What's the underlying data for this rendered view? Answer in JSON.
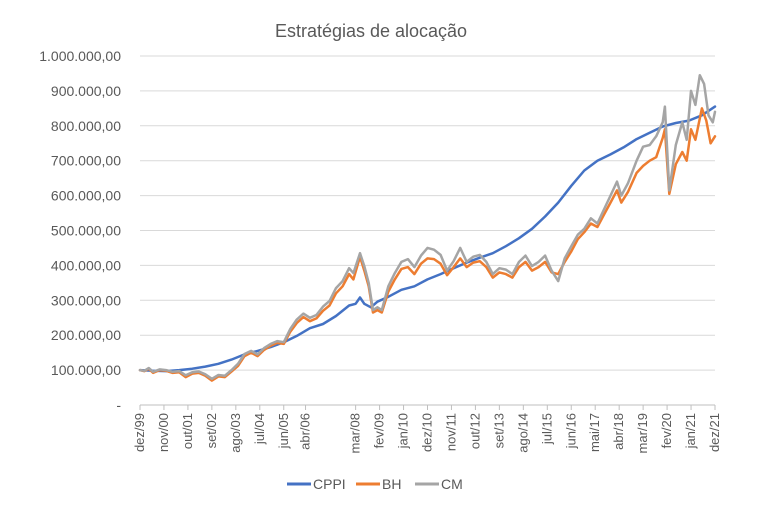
{
  "chart_data": {
    "type": "line",
    "title": "Estratégias de alocação",
    "xlabel": "",
    "ylabel": "",
    "ylim": [
      0,
      1000000
    ],
    "y_ticks": [
      0,
      100000,
      200000,
      300000,
      400000,
      500000,
      600000,
      700000,
      800000,
      900000,
      1000000
    ],
    "y_tick_labels": [
      "-",
      "100.000,00",
      "200.000,00",
      "300.000,00",
      "400.000,00",
      "500.000,00",
      "600.000,00",
      "700.000,00",
      "800.000,00",
      "900.000,00",
      "1.000.000,00"
    ],
    "x_tick_labels": [
      "dez/99",
      "nov/00",
      "out/01",
      "set/02",
      "ago/03",
      "jul/04",
      "jun/05",
      "abr/06",
      "mar/08",
      "fev/09",
      "jan/10",
      "dez/10",
      "nov/11",
      "out/12",
      "set/13",
      "ago/14",
      "jul/15",
      "jun/16",
      "mai/17",
      "abr/18",
      "mar/19",
      "fev/20",
      "jan/21",
      "dez/21"
    ],
    "x_tick_dates": [
      "1999-12",
      "2000-11",
      "2001-10",
      "2002-09",
      "2003-08",
      "2004-07",
      "2005-06",
      "2006-04",
      "2008-03",
      "2009-02",
      "2010-01",
      "2010-12",
      "2011-11",
      "2012-10",
      "2013-09",
      "2014-08",
      "2015-07",
      "2016-06",
      "2017-05",
      "2018-04",
      "2019-03",
      "2020-02",
      "2021-01",
      "2021-12"
    ],
    "x_range": [
      "1999-12",
      "2021-12"
    ],
    "grid": true,
    "legend_position": "bottom",
    "series": [
      {
        "name": "CPPI",
        "color": "#4472c4",
        "points": [
          [
            "1999-12",
            100000
          ],
          [
            "2000-06",
            98000
          ],
          [
            "2000-12",
            97000
          ],
          [
            "2001-06",
            100000
          ],
          [
            "2001-12",
            104000
          ],
          [
            "2002-06",
            110000
          ],
          [
            "2002-12",
            118000
          ],
          [
            "2003-06",
            130000
          ],
          [
            "2003-12",
            145000
          ],
          [
            "2004-06",
            155000
          ],
          [
            "2004-12",
            166000
          ],
          [
            "2005-06",
            180000
          ],
          [
            "2005-12",
            198000
          ],
          [
            "2006-06",
            220000
          ],
          [
            "2006-12",
            232000
          ],
          [
            "2007-06",
            255000
          ],
          [
            "2007-12",
            285000
          ],
          [
            "2008-03",
            290000
          ],
          [
            "2008-05",
            308000
          ],
          [
            "2008-07",
            290000
          ],
          [
            "2008-10",
            280000
          ],
          [
            "2009-01",
            296000
          ],
          [
            "2009-06",
            310000
          ],
          [
            "2009-12",
            330000
          ],
          [
            "2010-06",
            340000
          ],
          [
            "2010-12",
            360000
          ],
          [
            "2011-06",
            375000
          ],
          [
            "2011-12",
            392000
          ],
          [
            "2012-06",
            408000
          ],
          [
            "2012-12",
            422000
          ],
          [
            "2013-06",
            435000
          ],
          [
            "2013-12",
            455000
          ],
          [
            "2014-06",
            478000
          ],
          [
            "2014-12",
            505000
          ],
          [
            "2015-06",
            540000
          ],
          [
            "2015-12",
            580000
          ],
          [
            "2016-06",
            628000
          ],
          [
            "2016-12",
            672000
          ],
          [
            "2017-06",
            700000
          ],
          [
            "2017-12",
            718000
          ],
          [
            "2018-06",
            738000
          ],
          [
            "2018-12",
            762000
          ],
          [
            "2019-06",
            780000
          ],
          [
            "2019-12",
            798000
          ],
          [
            "2020-06",
            808000
          ],
          [
            "2020-12",
            815000
          ],
          [
            "2021-06",
            830000
          ],
          [
            "2021-12",
            855000
          ]
        ]
      },
      {
        "name": "BH",
        "color": "#ed7d31",
        "points": [
          [
            "1999-12",
            100000
          ],
          [
            "2000-02",
            97000
          ],
          [
            "2000-04",
            104000
          ],
          [
            "2000-06",
            92000
          ],
          [
            "2000-09",
            100000
          ],
          [
            "2000-12",
            98000
          ],
          [
            "2001-03",
            92000
          ],
          [
            "2001-06",
            94000
          ],
          [
            "2001-09",
            80000
          ],
          [
            "2001-12",
            90000
          ],
          [
            "2002-03",
            92000
          ],
          [
            "2002-06",
            84000
          ],
          [
            "2002-09",
            70000
          ],
          [
            "2002-12",
            82000
          ],
          [
            "2003-03",
            80000
          ],
          [
            "2003-06",
            96000
          ],
          [
            "2003-09",
            112000
          ],
          [
            "2003-12",
            140000
          ],
          [
            "2004-03",
            150000
          ],
          [
            "2004-06",
            140000
          ],
          [
            "2004-09",
            158000
          ],
          [
            "2004-12",
            170000
          ],
          [
            "2005-03",
            178000
          ],
          [
            "2005-06",
            175000
          ],
          [
            "2005-09",
            210000
          ],
          [
            "2005-12",
            235000
          ],
          [
            "2006-03",
            252000
          ],
          [
            "2006-06",
            240000
          ],
          [
            "2006-09",
            248000
          ],
          [
            "2006-12",
            270000
          ],
          [
            "2007-03",
            285000
          ],
          [
            "2007-06",
            320000
          ],
          [
            "2007-09",
            340000
          ],
          [
            "2007-12",
            375000
          ],
          [
            "2008-02",
            360000
          ],
          [
            "2008-05",
            425000
          ],
          [
            "2008-07",
            385000
          ],
          [
            "2008-09",
            340000
          ],
          [
            "2008-11",
            265000
          ],
          [
            "2009-01",
            272000
          ],
          [
            "2009-03",
            265000
          ],
          [
            "2009-06",
            325000
          ],
          [
            "2009-09",
            360000
          ],
          [
            "2009-12",
            390000
          ],
          [
            "2010-03",
            395000
          ],
          [
            "2010-06",
            375000
          ],
          [
            "2010-09",
            405000
          ],
          [
            "2010-12",
            420000
          ],
          [
            "2011-03",
            418000
          ],
          [
            "2011-06",
            405000
          ],
          [
            "2011-09",
            372000
          ],
          [
            "2011-12",
            395000
          ],
          [
            "2012-03",
            420000
          ],
          [
            "2012-06",
            395000
          ],
          [
            "2012-09",
            408000
          ],
          [
            "2012-12",
            412000
          ],
          [
            "2013-03",
            395000
          ],
          [
            "2013-06",
            365000
          ],
          [
            "2013-09",
            380000
          ],
          [
            "2013-12",
            375000
          ],
          [
            "2014-03",
            365000
          ],
          [
            "2014-06",
            395000
          ],
          [
            "2014-09",
            410000
          ],
          [
            "2014-12",
            385000
          ],
          [
            "2015-03",
            395000
          ],
          [
            "2015-06",
            410000
          ],
          [
            "2015-09",
            380000
          ],
          [
            "2015-12",
            375000
          ],
          [
            "2016-03",
            410000
          ],
          [
            "2016-06",
            440000
          ],
          [
            "2016-09",
            475000
          ],
          [
            "2016-12",
            495000
          ],
          [
            "2017-03",
            520000
          ],
          [
            "2017-06",
            510000
          ],
          [
            "2017-09",
            545000
          ],
          [
            "2017-12",
            580000
          ],
          [
            "2018-03",
            615000
          ],
          [
            "2018-05",
            580000
          ],
          [
            "2018-08",
            610000
          ],
          [
            "2018-12",
            665000
          ],
          [
            "2019-03",
            685000
          ],
          [
            "2019-06",
            700000
          ],
          [
            "2019-09",
            710000
          ],
          [
            "2019-12",
            765000
          ],
          [
            "2020-01",
            790000
          ],
          [
            "2020-03",
            605000
          ],
          [
            "2020-06",
            690000
          ],
          [
            "2020-09",
            725000
          ],
          [
            "2020-11",
            700000
          ],
          [
            "2021-01",
            790000
          ],
          [
            "2021-03",
            760000
          ],
          [
            "2021-06",
            850000
          ],
          [
            "2021-08",
            815000
          ],
          [
            "2021-10",
            750000
          ],
          [
            "2021-12",
            770000
          ]
        ]
      },
      {
        "name": "CM",
        "color": "#a5a5a5",
        "points": [
          [
            "1999-12",
            100000
          ],
          [
            "2000-02",
            98000
          ],
          [
            "2000-04",
            106000
          ],
          [
            "2000-06",
            95000
          ],
          [
            "2000-09",
            102000
          ],
          [
            "2000-12",
            100000
          ],
          [
            "2001-03",
            95000
          ],
          [
            "2001-06",
            97000
          ],
          [
            "2001-09",
            85000
          ],
          [
            "2001-12",
            94000
          ],
          [
            "2002-03",
            96000
          ],
          [
            "2002-06",
            88000
          ],
          [
            "2002-09",
            75000
          ],
          [
            "2002-12",
            86000
          ],
          [
            "2003-03",
            84000
          ],
          [
            "2003-06",
            100000
          ],
          [
            "2003-09",
            118000
          ],
          [
            "2003-12",
            146000
          ],
          [
            "2004-03",
            155000
          ],
          [
            "2004-06",
            145000
          ],
          [
            "2004-09",
            163000
          ],
          [
            "2004-12",
            175000
          ],
          [
            "2005-03",
            183000
          ],
          [
            "2005-06",
            180000
          ],
          [
            "2005-09",
            218000
          ],
          [
            "2005-12",
            245000
          ],
          [
            "2006-03",
            262000
          ],
          [
            "2006-06",
            250000
          ],
          [
            "2006-09",
            258000
          ],
          [
            "2006-12",
            282000
          ],
          [
            "2007-03",
            298000
          ],
          [
            "2007-06",
            335000
          ],
          [
            "2007-09",
            355000
          ],
          [
            "2007-12",
            392000
          ],
          [
            "2008-02",
            378000
          ],
          [
            "2008-05",
            435000
          ],
          [
            "2008-07",
            398000
          ],
          [
            "2008-09",
            350000
          ],
          [
            "2008-11",
            272000
          ],
          [
            "2009-01",
            280000
          ],
          [
            "2009-03",
            272000
          ],
          [
            "2009-06",
            340000
          ],
          [
            "2009-09",
            378000
          ],
          [
            "2009-12",
            410000
          ],
          [
            "2010-03",
            418000
          ],
          [
            "2010-06",
            395000
          ],
          [
            "2010-09",
            428000
          ],
          [
            "2010-12",
            450000
          ],
          [
            "2011-03",
            445000
          ],
          [
            "2011-06",
            430000
          ],
          [
            "2011-09",
            385000
          ],
          [
            "2011-12",
            412000
          ],
          [
            "2012-03",
            450000
          ],
          [
            "2012-06",
            410000
          ],
          [
            "2012-09",
            425000
          ],
          [
            "2012-12",
            430000
          ],
          [
            "2013-03",
            410000
          ],
          [
            "2013-06",
            375000
          ],
          [
            "2013-09",
            392000
          ],
          [
            "2013-12",
            388000
          ],
          [
            "2014-03",
            375000
          ],
          [
            "2014-06",
            410000
          ],
          [
            "2014-09",
            428000
          ],
          [
            "2014-12",
            398000
          ],
          [
            "2015-03",
            410000
          ],
          [
            "2015-06",
            428000
          ],
          [
            "2015-09",
            385000
          ],
          [
            "2015-12",
            355000
          ],
          [
            "2016-03",
            420000
          ],
          [
            "2016-06",
            455000
          ],
          [
            "2016-09",
            488000
          ],
          [
            "2016-12",
            505000
          ],
          [
            "2017-03",
            535000
          ],
          [
            "2017-06",
            520000
          ],
          [
            "2017-09",
            560000
          ],
          [
            "2017-12",
            600000
          ],
          [
            "2018-03",
            640000
          ],
          [
            "2018-05",
            600000
          ],
          [
            "2018-08",
            635000
          ],
          [
            "2018-12",
            700000
          ],
          [
            "2019-03",
            740000
          ],
          [
            "2019-06",
            745000
          ],
          [
            "2019-09",
            770000
          ],
          [
            "2019-12",
            810000
          ],
          [
            "2020-01",
            855000
          ],
          [
            "2020-03",
            615000
          ],
          [
            "2020-06",
            745000
          ],
          [
            "2020-09",
            810000
          ],
          [
            "2020-11",
            760000
          ],
          [
            "2021-01",
            900000
          ],
          [
            "2021-03",
            860000
          ],
          [
            "2021-05",
            945000
          ],
          [
            "2021-07",
            920000
          ],
          [
            "2021-09",
            830000
          ],
          [
            "2021-11",
            810000
          ],
          [
            "2021-12",
            840000
          ]
        ]
      }
    ]
  }
}
